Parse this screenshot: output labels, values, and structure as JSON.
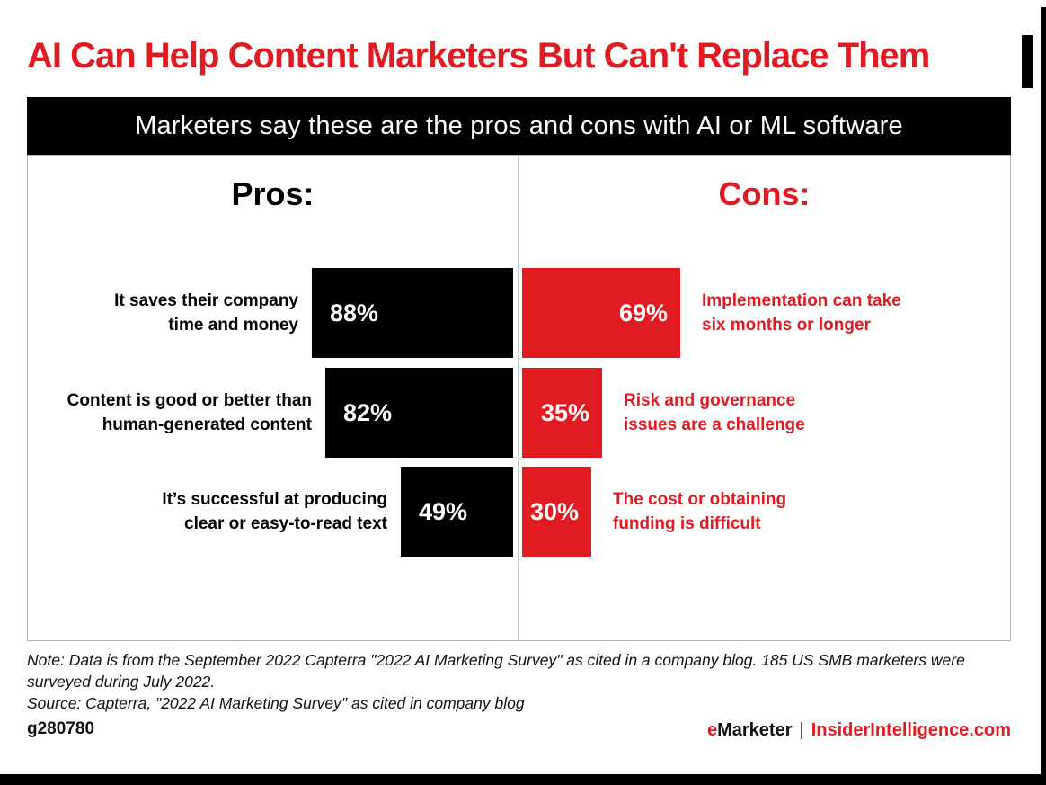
{
  "header": {
    "title": "AI Can Help Content Marketers But Can't Replace Them",
    "banner": "Marketers say these are the pros and cons with AI or ML software"
  },
  "chart_data": {
    "type": "bar",
    "orientation": "horizontal-diverging",
    "title": "Marketers say these are the pros and cons with AI or ML software",
    "unit": "%",
    "xlim": [
      0,
      100
    ],
    "grid": false,
    "legend": false,
    "groups": [
      {
        "name": "Pros:",
        "bar_color": "#000000",
        "label_color": "#000000",
        "items": [
          {
            "label": "It saves their company time and money",
            "label_lines": [
              "It saves their company",
              "time and money"
            ],
            "value": 88,
            "display": "88%"
          },
          {
            "label": "Content is good or better than human-generated content",
            "label_lines": [
              "Content is good or better than",
              "human-generated content"
            ],
            "value": 82,
            "display": "82%"
          },
          {
            "label": "It’s successful at producing clear or easy-to-read text",
            "label_lines": [
              "It’s successful at producing",
              "clear or easy-to-read text"
            ],
            "value": 49,
            "display": "49%"
          }
        ]
      },
      {
        "name": "Cons:",
        "bar_color": "#E11B22",
        "label_color": "#E11B22",
        "items": [
          {
            "label": "Implementation can take six months or longer",
            "label_lines": [
              "Implementation can take",
              "six months or longer"
            ],
            "value": 69,
            "display": "69%"
          },
          {
            "label": "Risk and governance issues are a challenge",
            "label_lines": [
              "Risk and governance",
              "issues are a challenge"
            ],
            "value": 35,
            "display": "35%"
          },
          {
            "label": "The cost or obtaining funding is difficult",
            "label_lines": [
              "The cost or obtaining",
              "funding is difficult"
            ],
            "value": 30,
            "display": "30%"
          }
        ]
      }
    ]
  },
  "footer": {
    "note": "Note: Data is from the September 2022 Capterra \"2022 AI Marketing Survey\" as cited in a company blog. 185 US SMB marketers were surveyed during July 2022.",
    "source": "Source: Capterra, \"2022 AI Marketing Survey\" as cited in company blog",
    "chart_id": "g280780",
    "brand": {
      "e": "e",
      "marketer": "Marketer",
      "separator": "|",
      "site": "InsiderIntelligence.com"
    }
  },
  "colors": {
    "accent_red": "#E11B22",
    "bar_black": "#000000",
    "banner_bg": "#000000",
    "banner_text": "#FFFFFF",
    "divider_gray": "#C8C8C8",
    "panel_border": "#B3B3B3"
  }
}
